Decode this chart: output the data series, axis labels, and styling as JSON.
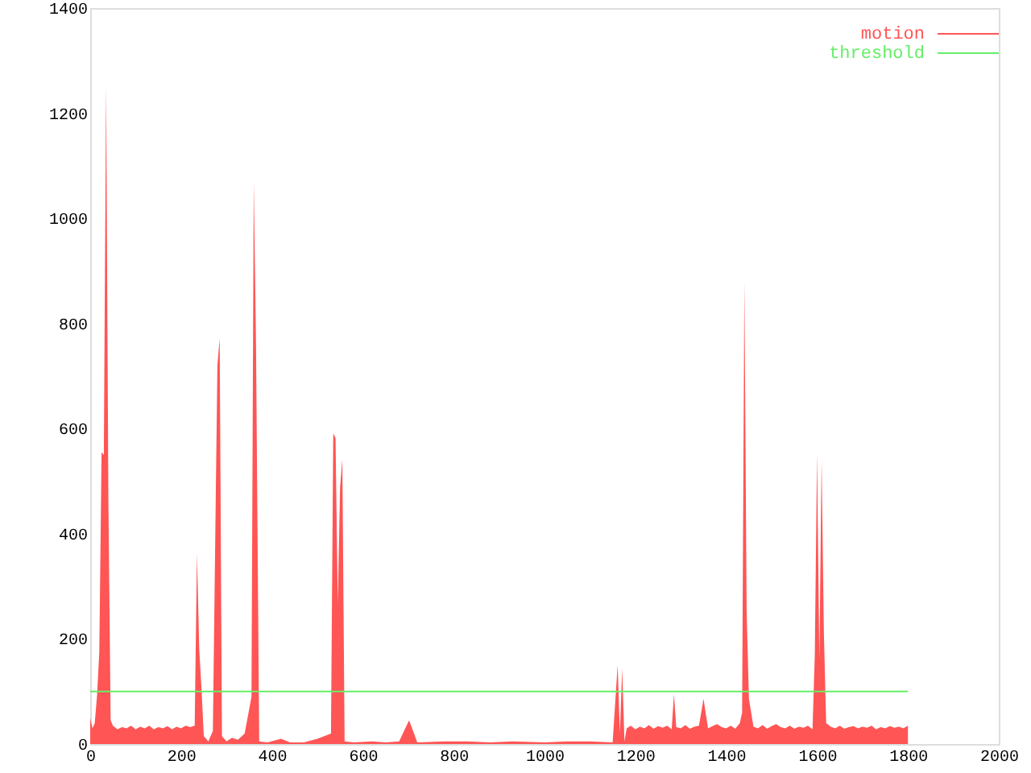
{
  "chart_data": {
    "type": "area",
    "xlim": [
      0,
      2000
    ],
    "xticks": [
      0,
      200,
      400,
      600,
      800,
      1000,
      1200,
      1400,
      1600,
      1800,
      2000
    ],
    "ylim": [
      0,
      1400
    ],
    "yticks": [
      0,
      200,
      400,
      600,
      800,
      1000,
      1200,
      1400
    ],
    "grid": false,
    "legend": "top right",
    "series": [
      {
        "name": "motion",
        "color": "#ff5555",
        "x": [
          0,
          5,
          10,
          15,
          20,
          25,
          30,
          35,
          40,
          45,
          50,
          60,
          70,
          80,
          90,
          100,
          110,
          120,
          130,
          140,
          150,
          160,
          170,
          180,
          190,
          200,
          210,
          220,
          230,
          235,
          240,
          245,
          250,
          260,
          270,
          280,
          285,
          290,
          300,
          312,
          325,
          340,
          355,
          360,
          365,
          372,
          390,
          420,
          440,
          470,
          500,
          530,
          535,
          540,
          545,
          550,
          555,
          560,
          580,
          620,
          650,
          680,
          702,
          720,
          780,
          830,
          880,
          930,
          1000,
          1050,
          1100,
          1150,
          1161,
          1166,
          1171,
          1176,
          1181,
          1190,
          1200,
          1210,
          1220,
          1230,
          1240,
          1250,
          1260,
          1270,
          1280,
          1285,
          1290,
          1300,
          1310,
          1320,
          1330,
          1340,
          1345,
          1350,
          1360,
          1370,
          1380,
          1390,
          1400,
          1410,
          1420,
          1430,
          1435,
          1440,
          1445,
          1450,
          1460,
          1470,
          1480,
          1490,
          1500,
          1510,
          1520,
          1530,
          1540,
          1550,
          1560,
          1570,
          1580,
          1590,
          1595,
          1600,
          1605,
          1610,
          1615,
          1620,
          1630,
          1640,
          1650,
          1660,
          1670,
          1680,
          1690,
          1700,
          1710,
          1720,
          1730,
          1740,
          1750,
          1760,
          1770,
          1780,
          1790,
          1800
        ],
        "values": [
          49,
          30,
          40,
          92,
          175,
          555,
          550,
          1254,
          466,
          45,
          35,
          28,
          32,
          30,
          35,
          28,
          33,
          30,
          35,
          28,
          32,
          30,
          34,
          28,
          33,
          30,
          35,
          32,
          35,
          362,
          180,
          105,
          15,
          5,
          25,
          721,
          772,
          15,
          5,
          12,
          8,
          20,
          90,
          1069,
          760,
          5,
          3,
          10,
          3,
          3,
          10,
          20,
          591,
          582,
          267,
          488,
          542,
          5,
          3,
          5,
          3,
          5,
          45,
          3,
          5,
          5,
          3,
          5,
          3,
          5,
          5,
          3,
          150,
          20,
          144,
          5,
          30,
          35,
          28,
          33,
          30,
          36,
          29,
          34,
          31,
          35,
          28,
          95,
          32,
          30,
          36,
          29,
          33,
          35,
          60,
          86,
          30,
          34,
          38,
          32,
          30,
          35,
          29,
          40,
          60,
          880,
          251,
          86,
          33,
          30,
          36,
          29,
          34,
          38,
          32,
          30,
          35,
          29,
          33,
          31,
          35,
          28,
          170,
          551,
          160,
          539,
          211,
          40,
          33,
          30,
          35,
          29,
          32,
          34,
          30,
          33,
          31,
          35,
          28,
          32,
          30,
          34,
          31,
          33,
          30,
          35
        ]
      },
      {
        "name": "threshold",
        "color": "#66ee66",
        "type": "line",
        "x": [
          0,
          1800
        ],
        "values": [
          100,
          100
        ]
      }
    ]
  }
}
